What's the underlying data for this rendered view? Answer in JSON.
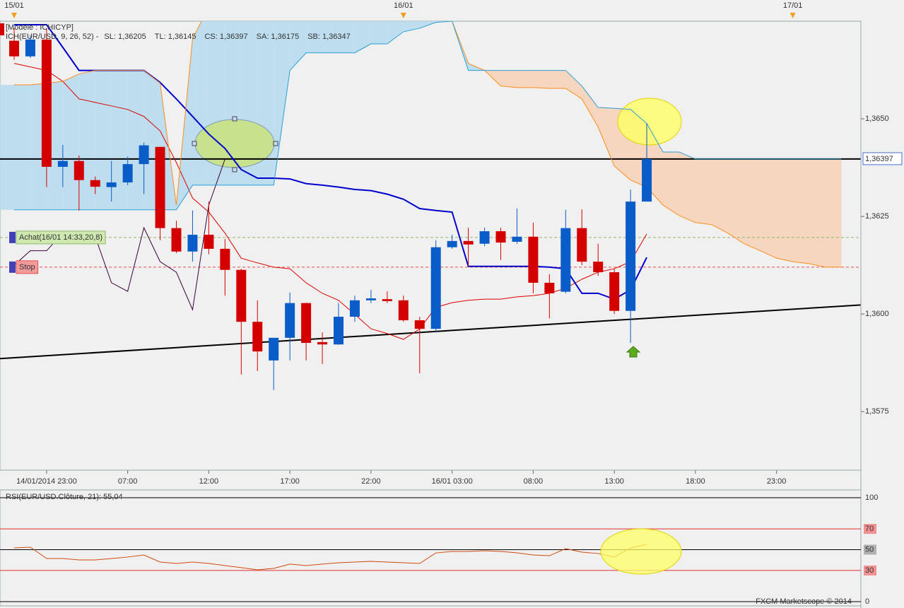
{
  "chart_data": {
    "type": "candlestick",
    "model": "[Modèle : ICHICYP]",
    "indicator": "ICH(EUR/USD, 9, 26, 52) -",
    "indicator_color": "#d40000",
    "categories": [
      null,
      null,
      "14/01/2014 23:00",
      null,
      null,
      null,
      null,
      "07:00",
      null,
      null,
      null,
      null,
      "12:00",
      null,
      null,
      null,
      null,
      "17:00",
      null,
      null,
      null,
      null,
      "22:00",
      null,
      null,
      null,
      null,
      "16/01 03:00",
      null,
      null,
      null,
      null,
      "08:00",
      null,
      null,
      null,
      null,
      "13:00",
      null,
      null,
      null,
      null,
      "18:00",
      null,
      null,
      null,
      null,
      "23:00",
      null,
      null,
      null,
      null
    ],
    "top_categories": [
      "15/01",
      null,
      null,
      null,
      null,
      null,
      null,
      null,
      null,
      null,
      null,
      null,
      null,
      null,
      null,
      null,
      null,
      null,
      null,
      null,
      null,
      null,
      null,
      null,
      "16/01",
      null,
      null,
      null,
      null,
      null,
      null,
      null,
      null,
      null,
      null,
      null,
      null,
      null,
      null,
      null,
      null,
      null,
      null,
      null,
      null,
      null,
      null,
      null,
      "17/01",
      null,
      null,
      null
    ],
    "open": [
      1.367,
      1.3666,
      1.36703,
      1.36377,
      1.36392,
      1.36343,
      1.36325,
      1.36337,
      1.36384,
      1.36428,
      1.3622,
      1.3616,
      1.36203,
      1.36167,
      1.36113,
      1.3598,
      1.35881,
      1.35939,
      1.36028,
      1.35928,
      1.35922,
      1.35993,
      1.36035,
      1.36038,
      1.36035,
      1.35984,
      1.35962,
      1.36171,
      1.36187,
      1.3618,
      1.36212,
      1.36185,
      1.36198,
      1.3608,
      1.36057,
      1.3622,
      1.36134,
      1.36107,
      1.36008,
      1.36288,
      null,
      null,
      null,
      null,
      null,
      null,
      null,
      null,
      null,
      null,
      null,
      null
    ],
    "high": [
      1.36732,
      1.36714,
      1.36732,
      1.36433,
      1.36406,
      1.36352,
      1.36392,
      1.36403,
      1.36439,
      1.36428,
      1.36239,
      1.36265,
      1.36288,
      1.36192,
      1.36116,
      1.36035,
      1.35939,
      1.36055,
      1.36029,
      1.35953,
      1.36028,
      1.36047,
      1.36062,
      1.36058,
      1.36047,
      1.35993,
      1.36189,
      1.36203,
      1.36221,
      1.36221,
      1.36221,
      1.3627,
      1.36234,
      1.36102,
      1.36267,
      1.36268,
      1.3618,
      1.36116,
      1.36319,
      1.36488,
      null,
      null,
      null,
      null,
      null,
      null,
      null,
      null,
      null,
      null,
      null,
      null
    ],
    "low": [
      1.36651,
      1.36656,
      1.36325,
      1.36325,
      1.36265,
      1.36307,
      1.36288,
      1.3633,
      1.36307,
      1.36189,
      1.36156,
      1.36134,
      1.36153,
      1.36047,
      1.35845,
      1.35854,
      1.35805,
      1.35881,
      1.35881,
      1.35872,
      1.35921,
      1.3598,
      1.36028,
      1.36028,
      1.3598,
      1.35848,
      1.35953,
      1.36167,
      1.36122,
      1.36174,
      1.36138,
      1.3618,
      1.36053,
      1.35989,
      1.36053,
      1.36125,
      1.36098,
      1.36,
      1.35926,
      1.36288,
      null,
      null,
      null,
      null,
      null,
      null,
      null,
      null,
      null,
      null,
      null,
      null
    ],
    "close": [
      1.3666,
      1.36703,
      1.36377,
      1.36392,
      1.36343,
      1.36326,
      1.36337,
      1.36384,
      1.36432,
      1.3622,
      1.3616,
      1.36203,
      1.36167,
      1.36113,
      1.3598,
      1.35904,
      1.35939,
      1.36028,
      1.35926,
      1.35922,
      1.35993,
      1.36035,
      1.3604,
      1.36033,
      1.35984,
      1.35962,
      1.36171,
      1.36187,
      1.36178,
      1.36212,
      1.36183,
      1.36198,
      1.3608,
      1.36053,
      1.3622,
      1.36134,
      1.36107,
      1.36008,
      1.36288,
      1.36397,
      null,
      null,
      null,
      null,
      null,
      null,
      null,
      null,
      null,
      null,
      null,
      null
    ],
    "up_color": "#0a5cc8",
    "down_color": "#d40000",
    "series": [
      {
        "name": "SL: 1,36205",
        "color": "#dd0000",
        "values": [
          1.36642,
          1.36633,
          1.36624,
          1.36596,
          1.36551,
          1.36542,
          1.36533,
          1.36524,
          1.36506,
          1.36469,
          1.36388,
          1.36297,
          1.36261,
          1.36207,
          1.36143,
          1.36131,
          1.3612,
          1.36116,
          1.3608,
          1.36053,
          1.36035,
          1.35999,
          1.35962,
          1.3595,
          1.35935,
          1.35962,
          1.36017,
          1.36029,
          1.36035,
          1.36038,
          1.36038,
          1.36044,
          1.36047,
          1.36053,
          1.36066,
          1.36089,
          1.36107,
          1.36116,
          1.36134,
          1.36205,
          null,
          null,
          null,
          null,
          null,
          null,
          null,
          null,
          null,
          null,
          null,
          null
        ]
      },
      {
        "name": "TL: 1,36145",
        "color": "#0000cc",
        "values": [
          1.36741,
          1.36741,
          1.36741,
          1.36683,
          1.36624,
          1.36624,
          1.36624,
          1.36624,
          1.36624,
          1.36593,
          1.36551,
          1.36506,
          1.36461,
          1.36424,
          1.3637,
          1.36348,
          1.36348,
          1.36346,
          1.36334,
          1.3633,
          1.36325,
          1.36319,
          1.36316,
          1.36307,
          1.36294,
          1.3627,
          1.36265,
          1.36261,
          1.36122,
          1.36122,
          1.36122,
          1.36122,
          1.36122,
          1.3612,
          1.36116,
          1.36053,
          1.36053,
          1.36038,
          1.36062,
          1.36145,
          null,
          null,
          null,
          null,
          null,
          null,
          null,
          null,
          null,
          null,
          null,
          null
        ]
      },
      {
        "name": "CS: 1,36397",
        "color": "#3a0038",
        "values": [
          1.36125,
          1.36162,
          1.36162,
          1.36207,
          1.36189,
          1.36198,
          1.3608,
          1.36058,
          1.36221,
          1.36134,
          1.36107,
          1.36011,
          1.36279,
          1.36397,
          null,
          null,
          null,
          null,
          null,
          null,
          null,
          null,
          null,
          null,
          null,
          null,
          null,
          null,
          null,
          null,
          null,
          null,
          null,
          null,
          null,
          null,
          null,
          null,
          null,
          null,
          null,
          null,
          null,
          null,
          null,
          null,
          null,
          null,
          null,
          null,
          null,
          null
        ]
      },
      {
        "name": "SA: 1,36175",
        "color": "#ff8c1a",
        "values": [
          1.36587,
          1.36587,
          1.36591,
          1.36596,
          1.36615,
          1.36624,
          1.36624,
          1.36624,
          1.36624,
          1.36591,
          1.36279,
          1.36705,
          1.36787,
          1.36787,
          1.36787,
          1.36787,
          1.36787,
          1.36787,
          1.36787,
          1.36787,
          1.36787,
          1.36787,
          1.36787,
          1.36787,
          1.36787,
          1.36787,
          1.36787,
          1.3675,
          1.36642,
          1.36624,
          1.36584,
          1.3658,
          1.3658,
          1.36578,
          1.36578,
          1.36551,
          1.36479,
          1.36379,
          1.36343,
          1.36325,
          1.36279,
          1.36252,
          1.36234,
          1.36229,
          1.36207,
          1.3618,
          1.36162,
          1.36143,
          1.36134,
          1.36129,
          1.3612,
          1.3612
        ]
      },
      {
        "name": "SB: 1,36347",
        "color": "#2a9fd6",
        "values": [
          1.36267,
          1.36267,
          1.36267,
          1.36267,
          1.36267,
          1.36267,
          1.36267,
          1.36267,
          1.36267,
          1.36267,
          1.36267,
          1.3633,
          1.3633,
          1.3633,
          1.3633,
          1.3633,
          1.3633,
          1.36624,
          1.36669,
          1.36669,
          1.36669,
          1.36669,
          1.36692,
          1.36692,
          1.36723,
          1.36732,
          1.36747,
          1.3675,
          1.36624,
          1.36624,
          1.36624,
          1.36624,
          1.36624,
          1.36624,
          1.36624,
          1.36584,
          1.36529,
          1.36527,
          1.36524,
          1.36488,
          1.36415,
          1.36415,
          1.36397,
          1.36397,
          1.36397,
          1.36397,
          1.36397,
          1.36397,
          1.36397,
          1.36397,
          1.36397,
          1.36397
        ]
      }
    ],
    "cloud_colors": [
      "#b8dbef",
      "#f6d3b8"
    ],
    "ylim": [
      1.356,
      1.3675
    ],
    "yticks": [
      {
        "value": 1.3575,
        "label": "1,3575"
      },
      {
        "value": 1.36,
        "label": "1,3600"
      },
      {
        "value": 1.3625,
        "label": "1,3625"
      },
      {
        "value": 1.365,
        "label": "1,3650"
      }
    ],
    "current_price": {
      "value": 1.36397,
      "label": "1,36397"
    },
    "trendline": [
      1.35888,
      1.3602
    ],
    "orders": [
      {
        "label": "Achat(16/01 14:33,20,8)",
        "value": 1.36196,
        "color": "#8fb86a",
        "box": "#cfe8b0",
        "text_color": "#4d8a2a"
      },
      {
        "label": "Stop",
        "value": 1.3612,
        "color": "#e05050",
        "box": "#f29a9a",
        "text_color": "#c02020"
      }
    ],
    "rsi": {
      "title": "RSI(EUR/USD.Clôture, 21): 55,04",
      "color": "#d04a10",
      "values": [
        51.7,
        52.4,
        41.5,
        41.5,
        40.1,
        40.1,
        41.5,
        42.9,
        44.9,
        38.1,
        36.7,
        38.1,
        36.7,
        34.7,
        32.7,
        30.6,
        32.0,
        36.1,
        34.7,
        36.1,
        37.4,
        38.1,
        38.8,
        38.1,
        37.4,
        36.7,
        46.9,
        48.3,
        48.3,
        49.0,
        48.3,
        46.9,
        44.9,
        44.2,
        51.0,
        47.6,
        46.3,
        42.9,
        51.7,
        55.0,
        null,
        null,
        null,
        null,
        null,
        null,
        null,
        null,
        null,
        null,
        null,
        null
      ],
      "ylim": [
        0,
        100
      ],
      "yticks": [
        100,
        70,
        50,
        30,
        0
      ],
      "tick_styles": [
        {
          "line": "#000000"
        },
        {
          "line": "#e03030",
          "box": "#f09090"
        },
        {
          "line": "#000000",
          "box": "#b0b0b0"
        },
        {
          "line": "#e03030",
          "box": "#f09090"
        },
        {
          "line": "#000000"
        }
      ]
    },
    "footer": "FXCM Marketscope © 2014"
  }
}
